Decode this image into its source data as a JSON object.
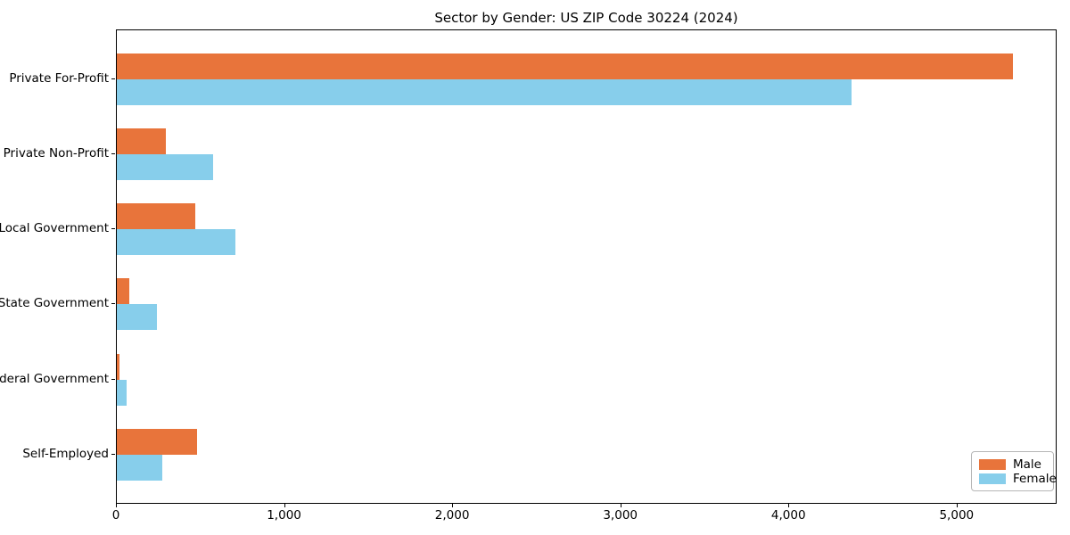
{
  "title": "Sector by Gender: US ZIP Code 30224 (2024)",
  "chart_data": {
    "type": "bar",
    "orientation": "horizontal",
    "title": "Sector by Gender: US ZIP Code 30224 (2024)",
    "categories": [
      "Private For-Profit",
      "Private Non-Profit",
      "Local Government",
      "State Government",
      "Federal Government",
      "Self-Employed"
    ],
    "series": [
      {
        "name": "Male",
        "color": "#E8743B",
        "values": [
          5330,
          290,
          465,
          72,
          15,
          475
        ]
      },
      {
        "name": "Female",
        "color": "#87CEEB",
        "values": [
          4370,
          575,
          705,
          240,
          57,
          268
        ]
      }
    ],
    "xlim": [
      0,
      5595
    ],
    "xticks": [
      0,
      1000,
      2000,
      3000,
      4000,
      5000
    ],
    "xtick_labels": [
      "0",
      "1,000",
      "2,000",
      "3,000",
      "4,000",
      "5,000"
    ],
    "xlabel": "",
    "ylabel": "",
    "grid": false,
    "legend_position": "lower right"
  }
}
